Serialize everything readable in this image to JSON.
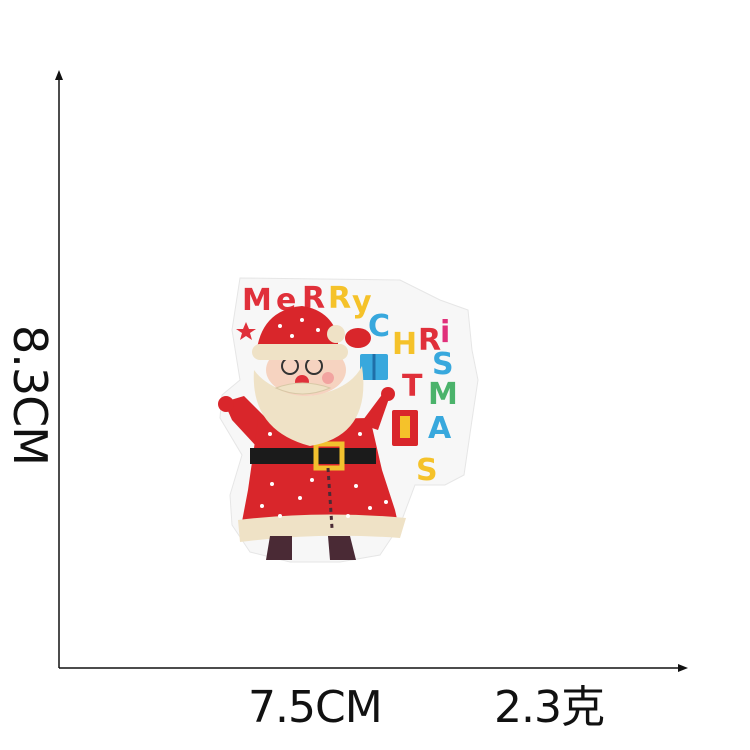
{
  "dimensions": {
    "height": "8.3CM",
    "width": "7.5CM",
    "weight": "2.3克"
  },
  "patch": {
    "greeting_letters": [
      "M",
      "e",
      "R",
      "R",
      "y",
      "C",
      "H",
      "R",
      "i",
      "S",
      "T",
      "M",
      "A",
      "S"
    ],
    "colors": {
      "santa_red": "#d9262b",
      "beard": "#efe2c6",
      "belt": "#1b1b1b",
      "buckle": "#f2c12e",
      "boots": "#4a2a35",
      "felt_backing": "#f7f7f7",
      "letter_red": "#e0303a",
      "letter_yellow": "#f5c22a",
      "letter_blue": "#38a8dd",
      "letter_green": "#4bb36b",
      "letter_pink": "#e0307a"
    }
  }
}
